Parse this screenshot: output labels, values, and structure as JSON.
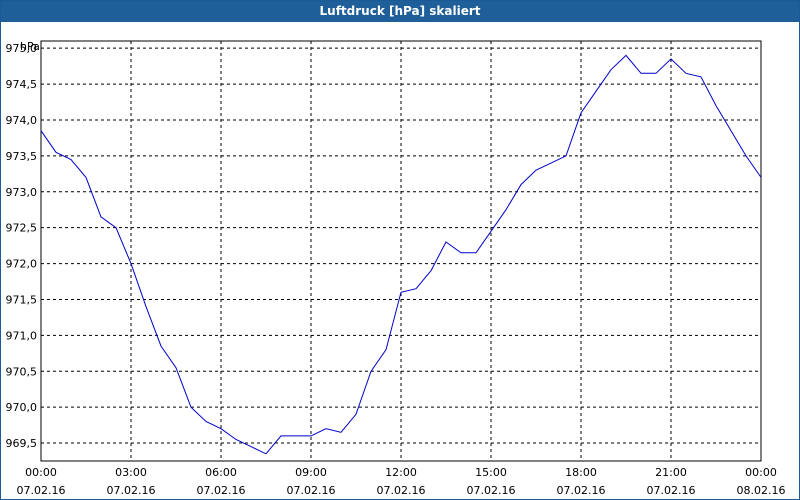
{
  "window": {
    "title": "Luftdruck [hPa] skaliert"
  },
  "colors": {
    "titlebar": "#1f5f99",
    "line": "#0000cc",
    "grid": "#000000"
  },
  "chart_data": {
    "type": "line",
    "title": "Luftdruck [hPa] skaliert",
    "ylabel": "hPa",
    "xlabel": "",
    "ylim": [
      969.25,
      975.1
    ],
    "xlim_hours": [
      0,
      24
    ],
    "grid": true,
    "y_ticks": [
      {
        "value": 975.0,
        "label": "975,0"
      },
      {
        "value": 974.5,
        "label": "974,5"
      },
      {
        "value": 974.0,
        "label": "974,0"
      },
      {
        "value": 973.5,
        "label": "973,5"
      },
      {
        "value": 973.0,
        "label": "973,0"
      },
      {
        "value": 972.5,
        "label": "972,5"
      },
      {
        "value": 972.0,
        "label": "972,0"
      },
      {
        "value": 971.5,
        "label": "971,5"
      },
      {
        "value": 971.0,
        "label": "971,0"
      },
      {
        "value": 970.5,
        "label": "970,5"
      },
      {
        "value": 970.0,
        "label": "970,0"
      },
      {
        "value": 969.5,
        "label": "969,5"
      }
    ],
    "x_ticks": [
      {
        "time": "00:00",
        "date": "07.02.16"
      },
      {
        "time": "03:00",
        "date": "07.02.16"
      },
      {
        "time": "06:00",
        "date": "07.02.16"
      },
      {
        "time": "09:00",
        "date": "07.02.16"
      },
      {
        "time": "12:00",
        "date": "07.02.16"
      },
      {
        "time": "15:00",
        "date": "07.02.16"
      },
      {
        "time": "18:00",
        "date": "07.02.16"
      },
      {
        "time": "21:00",
        "date": "07.02.16"
      },
      {
        "time": "00:00",
        "date": "08.02.16"
      }
    ],
    "series": [
      {
        "x": [
          0,
          0.5,
          1,
          1.5,
          2,
          2.5,
          3,
          3.5,
          4,
          4.5,
          5,
          5.5,
          6,
          6.5,
          7,
          7.5,
          8,
          8.5,
          9,
          9.5,
          10,
          10.5,
          11,
          11.5,
          12,
          12.5,
          13,
          13.5,
          14,
          14.5,
          15,
          15.5,
          16,
          16.5,
          17,
          17.5,
          18,
          18.5,
          19,
          19.5,
          20,
          20.5,
          21,
          21.5,
          22,
          22.5,
          23,
          23.5,
          24
        ],
        "y": [
          973.85,
          973.55,
          973.45,
          973.2,
          972.65,
          972.5,
          972.0,
          971.4,
          970.85,
          970.55,
          970.0,
          969.8,
          969.7,
          969.55,
          969.45,
          969.35,
          969.6,
          969.6,
          969.6,
          969.7,
          969.65,
          969.9,
          970.5,
          970.8,
          971.6,
          971.65,
          971.9,
          972.3,
          972.15,
          972.15,
          972.45,
          972.75,
          973.1,
          973.3,
          973.4,
          973.5,
          974.1,
          974.4,
          974.7,
          974.9,
          974.65,
          974.65,
          974.85,
          974.65,
          974.6,
          974.2,
          973.85,
          973.5,
          973.2
        ]
      }
    ]
  }
}
